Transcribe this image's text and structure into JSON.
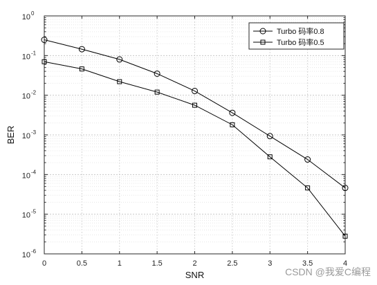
{
  "chart_data": {
    "type": "line",
    "title": "",
    "xlabel": "SNR",
    "ylabel": "BER",
    "xlim": [
      0,
      4
    ],
    "ylim": [
      1e-06,
      1
    ],
    "yscale": "log",
    "grid": "major and minor",
    "legend_position": "top-right",
    "x": [
      0,
      0.5,
      1,
      1.5,
      2,
      2.5,
      3,
      3.5,
      4
    ],
    "x_ticks": [
      0,
      0.5,
      1,
      1.5,
      2,
      2.5,
      3,
      3.5,
      4
    ],
    "y_tick_exponents": [
      0,
      -1,
      -2,
      -3,
      -4,
      -5,
      -6
    ],
    "series": [
      {
        "name": "Turbo 码率0.8",
        "marker": "circle",
        "color": "#000000",
        "values": [
          0.25,
          0.145,
          0.08,
          0.035,
          0.0128,
          0.0036,
          0.00093,
          0.00024,
          4.6e-05
        ]
      },
      {
        "name": "Turbo 码率0.5",
        "marker": "square",
        "color": "#000000",
        "values": [
          0.07,
          0.046,
          0.022,
          0.012,
          0.0056,
          0.0018,
          0.00028,
          4.6e-05,
          2.8e-06
        ]
      }
    ]
  },
  "watermark": "CSDN @我爱C编程"
}
